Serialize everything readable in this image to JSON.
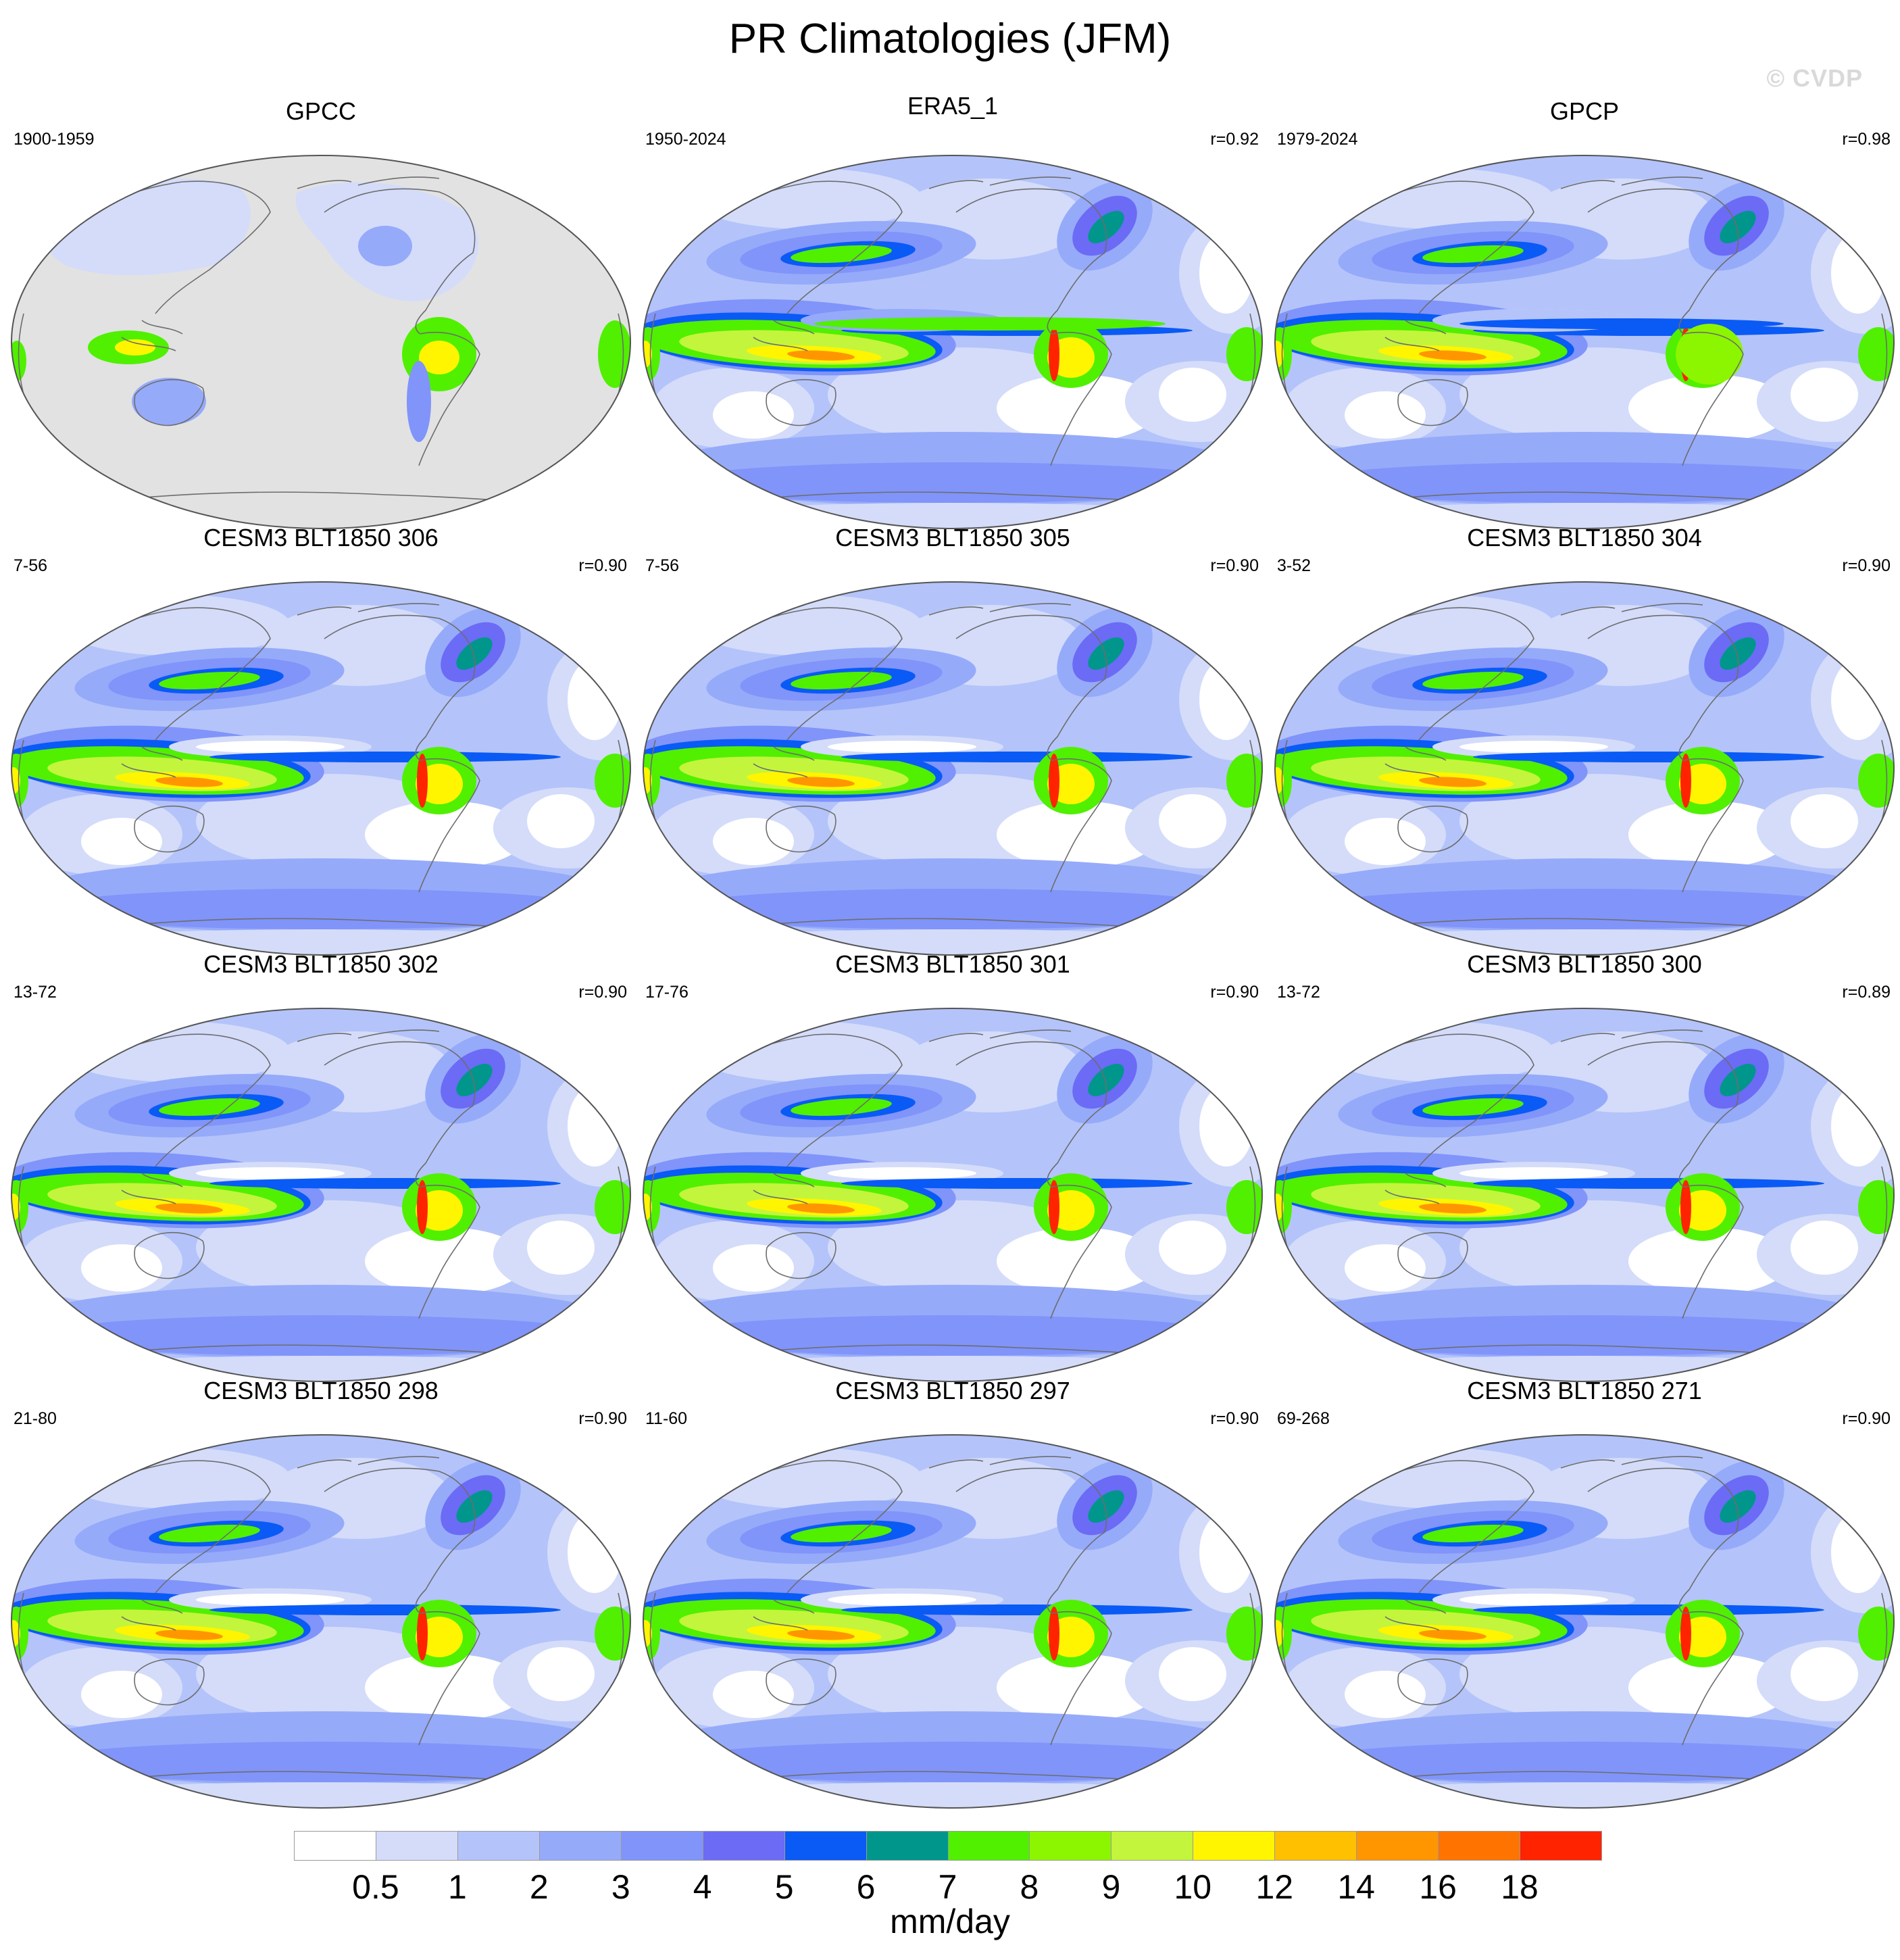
{
  "title": "PR Climatologies (JFM)",
  "watermark": "© CVDP",
  "panels": [
    {
      "name": "GPCC",
      "years": "1900-1959",
      "corr": "",
      "kind": "obs"
    },
    {
      "name": "ERA5_1",
      "years": "1950-2024",
      "corr": "r=0.92",
      "kind": "era"
    },
    {
      "name": "GPCP",
      "years": "1979-2024",
      "corr": "r=0.98",
      "kind": "gpcp"
    },
    {
      "name": "CESM3 BLT1850 306",
      "years": "7-56",
      "corr": "r=0.90",
      "kind": "model"
    },
    {
      "name": "CESM3 BLT1850 305",
      "years": "7-56",
      "corr": "r=0.90",
      "kind": "model"
    },
    {
      "name": "CESM3 BLT1850 304",
      "years": "3-52",
      "corr": "r=0.90",
      "kind": "model"
    },
    {
      "name": "CESM3 BLT1850 302",
      "years": "13-72",
      "corr": "r=0.90",
      "kind": "model"
    },
    {
      "name": "CESM3 BLT1850 301",
      "years": "17-76",
      "corr": "r=0.90",
      "kind": "model"
    },
    {
      "name": "CESM3 BLT1850 300",
      "years": "13-72",
      "corr": "r=0.89",
      "kind": "model"
    },
    {
      "name": "CESM3 BLT1850 298",
      "years": "21-80",
      "corr": "r=0.90",
      "kind": "model"
    },
    {
      "name": "CESM3 BLT1850 297",
      "years": "11-60",
      "corr": "r=0.90",
      "kind": "model"
    },
    {
      "name": "CESM3 BLT1850 271",
      "years": "69-268",
      "corr": "r=0.90",
      "kind": "model"
    }
  ],
  "colorbar": {
    "labels": [
      "0.5",
      "1",
      "2",
      "3",
      "4",
      "5",
      "6",
      "7",
      "8",
      "9",
      "10",
      "12",
      "14",
      "16",
      "18"
    ],
    "colors": [
      "#ffffff",
      "#d4dcfa",
      "#b4c4fa",
      "#96aafa",
      "#8094fa",
      "#6b6bf5",
      "#0a5af5",
      "#00968c",
      "#50f000",
      "#8cf500",
      "#c3f53c",
      "#fff500",
      "#ffc000",
      "#ff9600",
      "#ff7300",
      "#ff2300"
    ],
    "units": "mm/day"
  }
}
